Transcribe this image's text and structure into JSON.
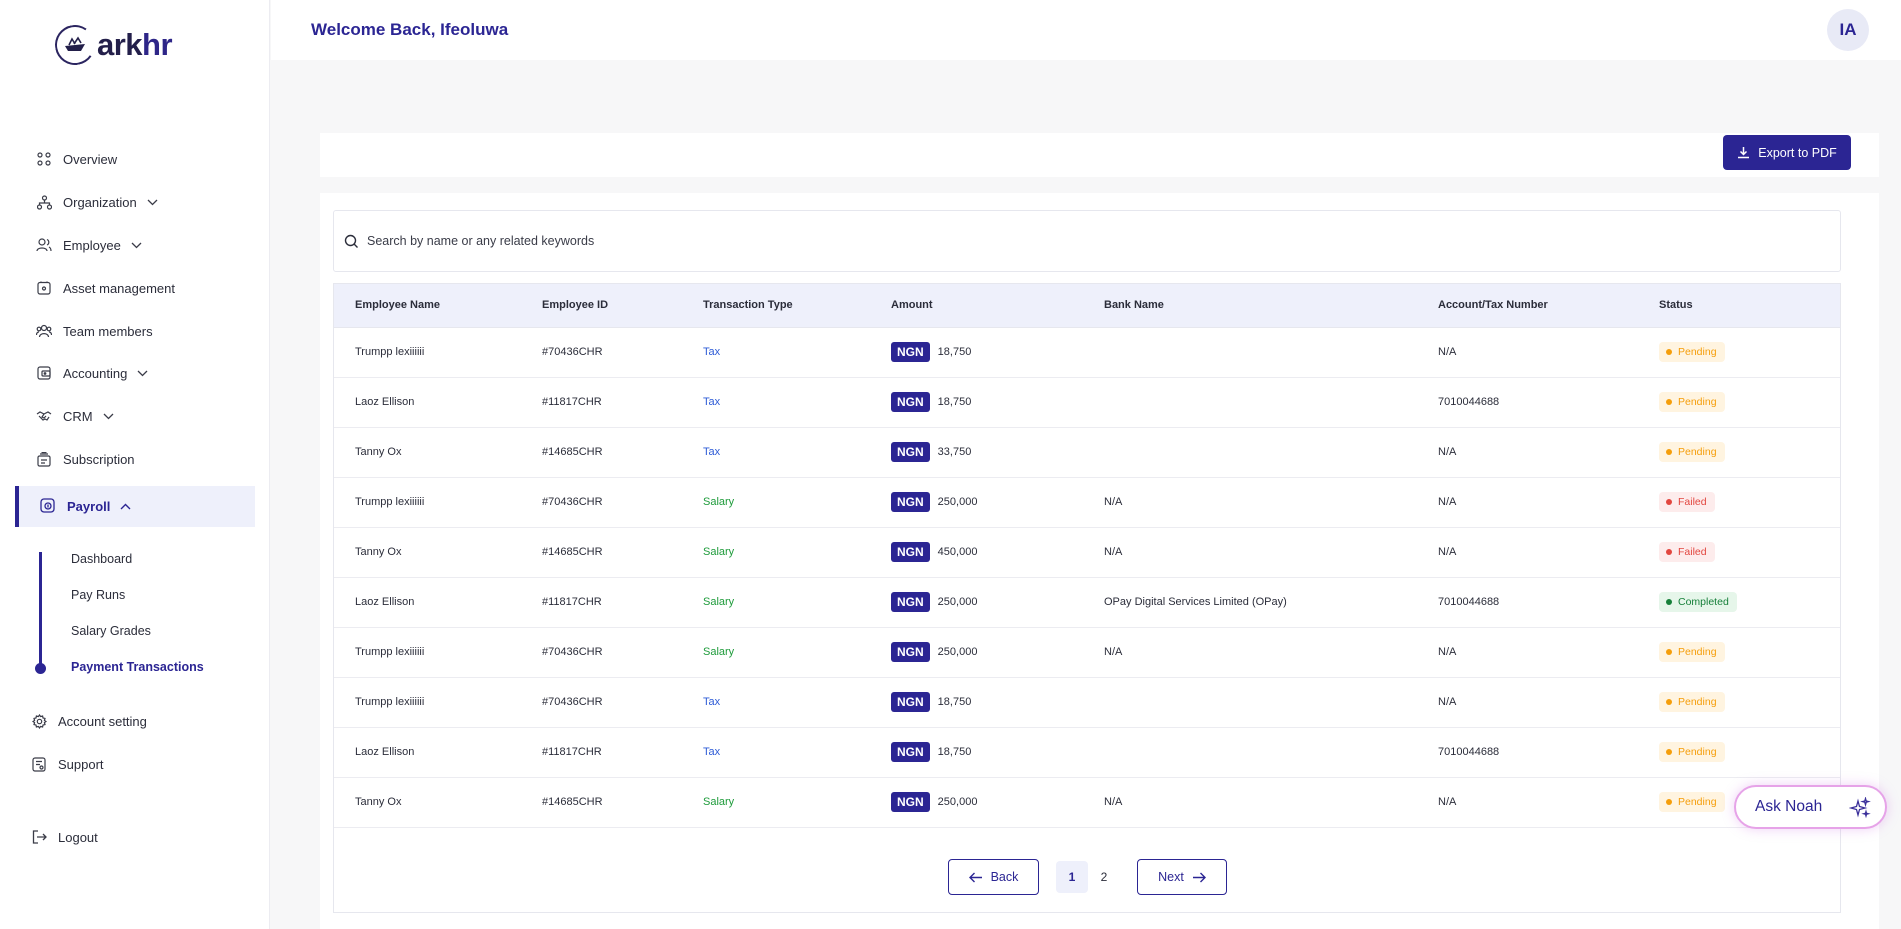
{
  "brand": {
    "name_a": "ark",
    "name_b": "hr"
  },
  "header": {
    "welcome": "Welcome Back, Ifeoluwa",
    "avatar_initials": "IA"
  },
  "sidebar": {
    "items": [
      {
        "label": "Overview",
        "icon": "grid-icon"
      },
      {
        "label": "Organization",
        "icon": "org-chart-icon",
        "has_chevron": true
      },
      {
        "label": "Employee",
        "icon": "users-icon",
        "has_chevron": true
      },
      {
        "label": "Asset management",
        "icon": "asset-icon"
      },
      {
        "label": "Team members",
        "icon": "team-icon"
      },
      {
        "label": "Accounting",
        "icon": "wallet-icon",
        "has_chevron": true
      },
      {
        "label": "CRM",
        "icon": "handshake-icon",
        "has_chevron": true
      },
      {
        "label": "Subscription",
        "icon": "subscription-icon"
      },
      {
        "label": "Payroll",
        "icon": "payroll-icon",
        "expanded": true
      },
      {
        "label": "Account setting",
        "icon": "gear-icon"
      },
      {
        "label": "Support",
        "icon": "support-icon"
      },
      {
        "label": "Logout",
        "icon": "logout-icon"
      }
    ],
    "payroll_sub": [
      "Dashboard",
      "Pay Runs",
      "Salary Grades",
      "Payment Transactions"
    ]
  },
  "toolbar": {
    "export_label": "Export to PDF"
  },
  "search": {
    "placeholder": "Search by name or any related keywords"
  },
  "table": {
    "columns": [
      "Employee Name",
      "Employee ID",
      "Transaction Type",
      "Amount",
      "Bank Name",
      "Account/Tax Number",
      "Status"
    ],
    "currency": "NGN",
    "rows": [
      {
        "name": "Trumpp lexiiiiii",
        "id": "#70436CHR",
        "type": "Tax",
        "amount": "18,750",
        "bank": "",
        "account": "N/A",
        "status": "Pending"
      },
      {
        "name": "Laoz Ellison",
        "id": "#11817CHR",
        "type": "Tax",
        "amount": "18,750",
        "bank": "",
        "account": "7010044688",
        "status": "Pending"
      },
      {
        "name": "Tanny Ox",
        "id": "#14685CHR",
        "type": "Tax",
        "amount": "33,750",
        "bank": "",
        "account": "N/A",
        "status": "Pending"
      },
      {
        "name": "Trumpp lexiiiiii",
        "id": "#70436CHR",
        "type": "Salary",
        "amount": "250,000",
        "bank": "N/A",
        "account": "N/A",
        "status": "Failed"
      },
      {
        "name": "Tanny Ox",
        "id": "#14685CHR",
        "type": "Salary",
        "amount": "450,000",
        "bank": "N/A",
        "account": "N/A",
        "status": "Failed"
      },
      {
        "name": "Laoz Ellison",
        "id": "#11817CHR",
        "type": "Salary",
        "amount": "250,000",
        "bank": "OPay Digital Services Limited (OPay)",
        "account": "7010044688",
        "status": "Completed"
      },
      {
        "name": "Trumpp lexiiiiii",
        "id": "#70436CHR",
        "type": "Salary",
        "amount": "250,000",
        "bank": "N/A",
        "account": "N/A",
        "status": "Pending"
      },
      {
        "name": "Trumpp lexiiiiii",
        "id": "#70436CHR",
        "type": "Tax",
        "amount": "18,750",
        "bank": "",
        "account": "N/A",
        "status": "Pending"
      },
      {
        "name": "Laoz Ellison",
        "id": "#11817CHR",
        "type": "Tax",
        "amount": "18,750",
        "bank": "",
        "account": "7010044688",
        "status": "Pending"
      },
      {
        "name": "Tanny Ox",
        "id": "#14685CHR",
        "type": "Salary",
        "amount": "250,000",
        "bank": "N/A",
        "account": "N/A",
        "status": "Pending"
      }
    ]
  },
  "pagination": {
    "back_label": "Back",
    "next_label": "Next",
    "pages": [
      "1",
      "2"
    ],
    "current": "1"
  },
  "assistant": {
    "label": "Ask Noah",
    "icon": "sparkles-icon"
  },
  "colors": {
    "primary": "#2b2593",
    "tax": "#2d5bd6",
    "salary": "#1e9b3b",
    "pending": "#f59e0b",
    "failed": "#e2463f",
    "completed": "#17803a"
  }
}
